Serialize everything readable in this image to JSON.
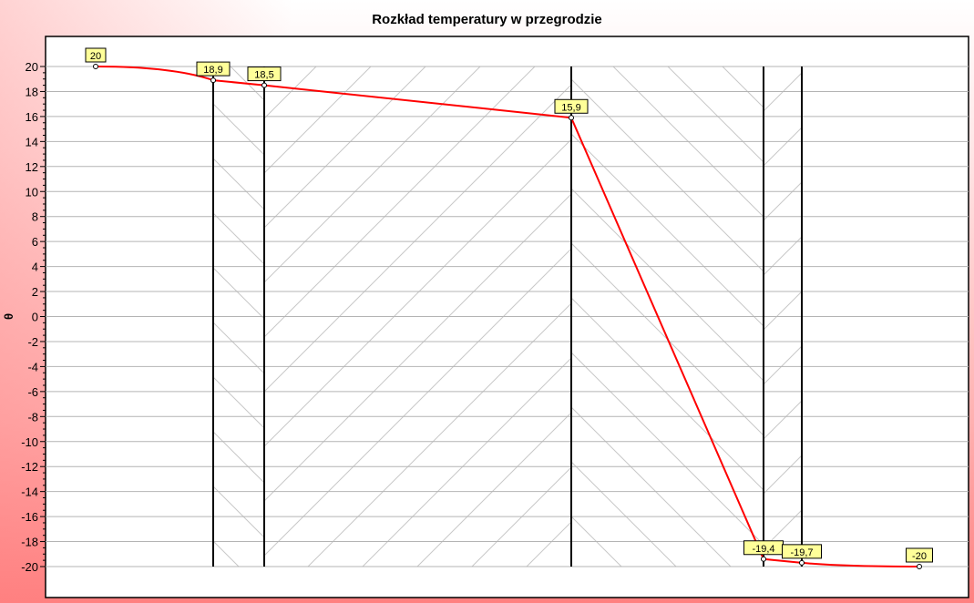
{
  "chart_data": {
    "type": "line",
    "title": "Rozkład temperatury w przegrodzie",
    "ylabel": "θ",
    "xlabel": "",
    "ylim": [
      -20,
      20
    ],
    "ytick_step": 2,
    "grid": true,
    "line_color": "#ff0000",
    "label_bg": "#ffff99",
    "series": [
      {
        "values": [
          20,
          18.9,
          18.5,
          15.9,
          -19.4,
          -19.7,
          -20
        ],
        "labels": [
          "20",
          "18,9",
          "18,5",
          "15,9",
          "-19,4",
          "-19,7",
          "-20"
        ]
      }
    ],
    "layers": 4
  }
}
